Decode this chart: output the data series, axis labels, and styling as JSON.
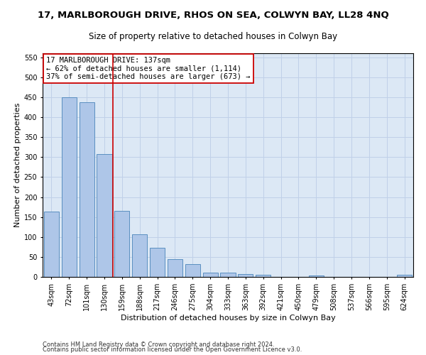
{
  "title": "17, MARLBOROUGH DRIVE, RHOS ON SEA, COLWYN BAY, LL28 4NQ",
  "subtitle": "Size of property relative to detached houses in Colwyn Bay",
  "xlabel": "Distribution of detached houses by size in Colwyn Bay",
  "ylabel": "Number of detached properties",
  "footnote1": "Contains HM Land Registry data © Crown copyright and database right 2024.",
  "footnote2": "Contains public sector information licensed under the Open Government Licence v3.0.",
  "bar_labels": [
    "43sqm",
    "72sqm",
    "101sqm",
    "130sqm",
    "159sqm",
    "188sqm",
    "217sqm",
    "246sqm",
    "275sqm",
    "304sqm",
    "333sqm",
    "363sqm",
    "392sqm",
    "421sqm",
    "450sqm",
    "479sqm",
    "508sqm",
    "537sqm",
    "566sqm",
    "595sqm",
    "624sqm"
  ],
  "bar_values": [
    163,
    450,
    438,
    307,
    165,
    106,
    73,
    44,
    32,
    10,
    10,
    8,
    5,
    0,
    0,
    4,
    0,
    0,
    0,
    0,
    5
  ],
  "bar_color": "#aec6e8",
  "bar_edge_color": "#5a8fc0",
  "grid_color": "#c0d0e8",
  "background_color": "#dce8f5",
  "vline_x": 3.5,
  "vline_color": "#cc0000",
  "annotation_text": "17 MARLBOROUGH DRIVE: 137sqm\n← 62% of detached houses are smaller (1,114)\n37% of semi-detached houses are larger (673) →",
  "annotation_box_color": "#ffffff",
  "annotation_box_edge": "#cc0000",
  "ylim": [
    0,
    560
  ],
  "yticks": [
    0,
    50,
    100,
    150,
    200,
    250,
    300,
    350,
    400,
    450,
    500,
    550
  ],
  "title_fontsize": 9.5,
  "subtitle_fontsize": 8.5,
  "annotation_fontsize": 7.5,
  "ylabel_fontsize": 8,
  "xlabel_fontsize": 8,
  "tick_fontsize": 7,
  "footnote_fontsize": 6
}
